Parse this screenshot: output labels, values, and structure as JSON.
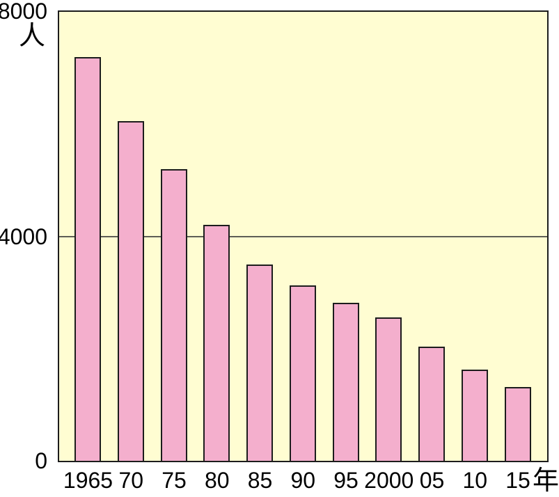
{
  "chart_data": {
    "type": "bar",
    "categories": [
      "1965",
      "70",
      "75",
      "80",
      "85",
      "90",
      "95",
      "2000",
      "05",
      "10",
      "15"
    ],
    "values": [
      7200,
      6050,
      5200,
      4200,
      3500,
      3130,
      2810,
      2550,
      2030,
      1630,
      1310
    ],
    "unit_y": "人",
    "unit_x": "年",
    "ylim": [
      0,
      8000
    ],
    "y_ticks": [
      {
        "value": 8000,
        "label": "8000"
      },
      {
        "value": 4000,
        "label": "4000"
      },
      {
        "value": 0,
        "label": "0"
      }
    ],
    "grid_values": [
      4000
    ],
    "legend": null,
    "colors": {
      "bar_fill": "#F4AFCD",
      "bar_border": "#1C1C1C",
      "plot_background": "#FFFDD2",
      "plot_border": "#1C1C1C",
      "gridline": "#5E5E56",
      "label_text": "#000000",
      "page_background": "#FFFFFF"
    }
  }
}
